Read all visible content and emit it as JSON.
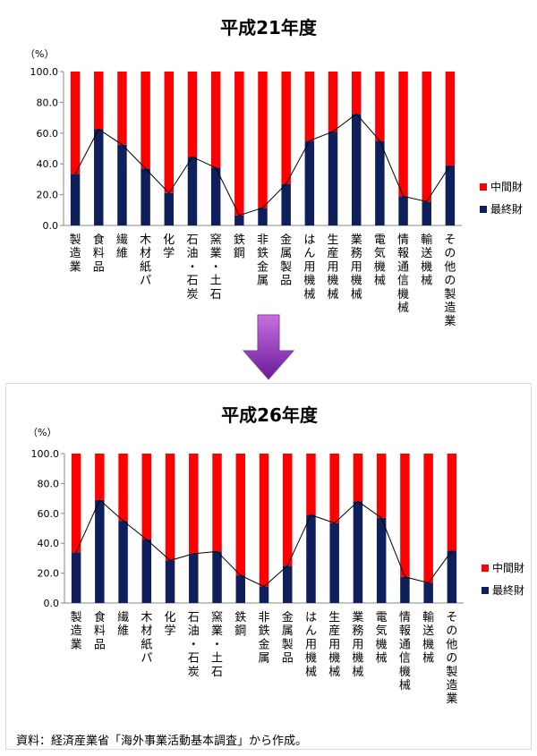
{
  "charts": [
    {
      "title": "平成21年度",
      "unit_label": "（%）"
    },
    {
      "title": "平成26年度",
      "unit_label": "（%）"
    }
  ],
  "source_note": "資料：経済産業省「海外事業活動基本調査」から作成。",
  "colors": {
    "intermediate": "#ff0000",
    "final": "#0f1f5c",
    "arrow_top": "#c76fe0",
    "arrow_bottom": "#6a1b9a"
  },
  "chart_data": [
    {
      "type": "bar",
      "stacked": true,
      "title": "平成21年度",
      "ylabel": "（%）",
      "ylim": [
        0,
        100
      ],
      "yticks": [
        "0.0",
        "20.0",
        "40.0",
        "60.0",
        "80.0",
        "100.0"
      ],
      "categories": [
        "製造業",
        "食料品",
        "繊維",
        "木材紙パ",
        "化学",
        "石油・石炭",
        "窯業・土石",
        "鉄鋼",
        "非鉄金属",
        "金属製品",
        "はん用機械",
        "生産用機械",
        "業務用機械",
        "電気機械",
        "情報通信機械",
        "輸送機械",
        "その他の製造業"
      ],
      "series": [
        {
          "name": "最終財",
          "values": [
            33.5,
            62.5,
            52.5,
            37.0,
            21.0,
            44.5,
            37.5,
            6.5,
            11.5,
            27.0,
            55.0,
            61.0,
            72.5,
            55.0,
            19.0,
            15.5,
            39.0
          ]
        },
        {
          "name": "中間財",
          "values": [
            66.5,
            37.5,
            47.5,
            63.0,
            79.0,
            55.5,
            62.5,
            93.5,
            88.5,
            73.0,
            45.0,
            39.0,
            27.5,
            45.0,
            81.0,
            84.5,
            61.0
          ]
        }
      ],
      "legend": "right",
      "line_overlay": "最終財"
    },
    {
      "type": "bar",
      "stacked": true,
      "title": "平成26年度",
      "ylabel": "（%）",
      "ylim": [
        0,
        100
      ],
      "yticks": [
        "0.0",
        "20.0",
        "40.0",
        "60.0",
        "80.0",
        "100.0"
      ],
      "categories": [
        "製造業",
        "食料品",
        "繊維",
        "木材紙パ",
        "化学",
        "石油・石炭",
        "窯業・土石",
        "鉄鋼",
        "非鉄金属",
        "金属製品",
        "はん用機械",
        "生産用機械",
        "業務用機械",
        "電気機械",
        "情報通信機械",
        "輸送機械",
        "その他の製造業"
      ],
      "series": [
        {
          "name": "最終財",
          "values": [
            34.0,
            69.0,
            55.0,
            42.5,
            28.5,
            33.0,
            34.5,
            18.5,
            11.0,
            25.0,
            59.0,
            53.5,
            68.0,
            57.0,
            17.5,
            13.5,
            35.0
          ]
        },
        {
          "name": "中間財",
          "values": [
            66.0,
            31.0,
            45.0,
            57.5,
            71.5,
            67.0,
            65.5,
            81.5,
            89.0,
            75.0,
            41.0,
            46.5,
            32.0,
            43.0,
            82.5,
            86.5,
            65.0
          ]
        }
      ],
      "legend": "right",
      "line_overlay": "最終財"
    }
  ]
}
